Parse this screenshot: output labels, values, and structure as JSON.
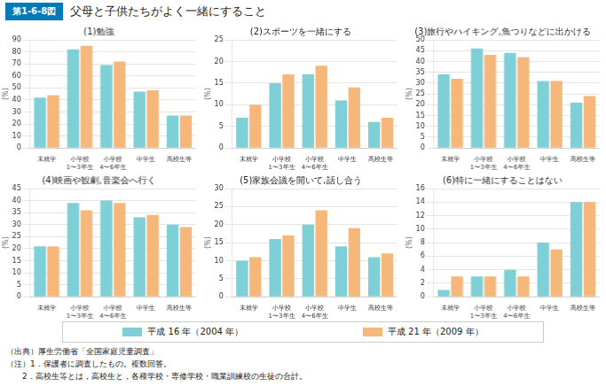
{
  "title": "父母と子供たちがよく一緒にすること",
  "subtitle": "第1-6-8図",
  "annotations": [
    "（出典）厚生労働省「全国家庭児童調査」",
    "（注）1．保護者に調査したもの。複数回答。",
    "　　2．高校生等とは，高校生と，各種学校・専修学校・職業訓練校の生徒の合計。"
  ],
  "chart_data": [
    {
      "type": "bar",
      "title": "(1)勉強",
      "ylabel": "(%)",
      "categories": [
        "未就学",
        "小学校\n1〜3年生",
        "小学校\n4〜6年生",
        "中学生",
        "高校生等"
      ],
      "series": [
        {
          "name": "平成 16 年（2004 年）",
          "color": "#7ECFD6",
          "values": [
            42,
            82,
            69,
            47,
            27
          ]
        },
        {
          "name": "平成 21 年（2009 年）",
          "color": "#F5B87A",
          "values": [
            44,
            85,
            72,
            48,
            27
          ]
        }
      ],
      "ylim": [
        0,
        90
      ],
      "yticks": [
        0,
        10,
        20,
        30,
        40,
        50,
        60,
        70,
        80,
        90
      ],
      "grid": true
    },
    {
      "type": "bar",
      "title": "(2)スポーツを一緒にする",
      "ylabel": "(%)",
      "categories": [
        "未就学",
        "小学校\n1〜3年生",
        "小学校\n4〜6年生",
        "中学生",
        "高校生等"
      ],
      "series": [
        {
          "name": "平成 16 年（2004 年）",
          "color": "#7ECFD6",
          "values": [
            7,
            15,
            17,
            11,
            6
          ]
        },
        {
          "name": "平成 21 年（2009 年）",
          "color": "#F5B87A",
          "values": [
            10,
            17,
            19,
            14,
            7
          ]
        }
      ],
      "ylim": [
        0,
        25
      ],
      "yticks": [
        0,
        5,
        10,
        15,
        20,
        25
      ],
      "grid": true
    },
    {
      "type": "bar",
      "title": "(3)旅行やハイキング,魚つりなどに出かける",
      "ylabel": "(%)",
      "categories": [
        "未就学",
        "小学校\n1〜3年生",
        "小学校\n4〜6年生",
        "中学生",
        "高校生等"
      ],
      "series": [
        {
          "name": "平成 16 年（2004 年）",
          "color": "#7ECFD6",
          "values": [
            34,
            46,
            44,
            31,
            21
          ]
        },
        {
          "name": "平成 21 年（2009 年）",
          "color": "#F5B87A",
          "values": [
            32,
            43,
            42,
            31,
            24
          ]
        }
      ],
      "ylim": [
        0,
        50
      ],
      "yticks": [
        0,
        5,
        10,
        15,
        20,
        25,
        30,
        35,
        40,
        45,
        50
      ],
      "grid": true
    },
    {
      "type": "bar",
      "title": "(4)映画や観劇,音楽会へ行く",
      "ylabel": "(%)",
      "categories": [
        "未就学",
        "小学校\n1〜3年生",
        "小学校\n4〜6年生",
        "中学生",
        "高校生等"
      ],
      "series": [
        {
          "name": "平成 16 年（2004 年）",
          "color": "#7ECFD6",
          "values": [
            21,
            39,
            40,
            33,
            30
          ]
        },
        {
          "name": "平成 21 年（2009 年）",
          "color": "#F5B87A",
          "values": [
            21,
            36,
            39,
            34,
            29
          ]
        }
      ],
      "ylim": [
        0,
        45
      ],
      "yticks": [
        0,
        5,
        10,
        15,
        20,
        25,
        30,
        35,
        40,
        45
      ],
      "grid": true
    },
    {
      "type": "bar",
      "title": "(5)家族会議を開いて,話し合う",
      "ylabel": "(%)",
      "categories": [
        "未就学",
        "小学校\n1〜3年生",
        "小学校\n4〜6年生",
        "中学生",
        "高校生等"
      ],
      "series": [
        {
          "name": "平成 16 年（2004 年）",
          "color": "#7ECFD6",
          "values": [
            10,
            16,
            20,
            14,
            11
          ]
        },
        {
          "name": "平成 21 年（2009 年）",
          "color": "#F5B87A",
          "values": [
            11,
            17,
            24,
            19,
            12
          ]
        }
      ],
      "ylim": [
        0,
        30
      ],
      "yticks": [
        0,
        5,
        10,
        15,
        20,
        25,
        30
      ],
      "grid": true
    },
    {
      "type": "bar",
      "title": "(6)特に一緒にすることはない",
      "ylabel": "(%)",
      "categories": [
        "未就学",
        "小学校\n1〜3年生",
        "小学校\n4〜6年生",
        "中学生",
        "高校生等"
      ],
      "series": [
        {
          "name": "平成 16 年（2004 年）",
          "color": "#7ECFD6",
          "values": [
            1,
            3,
            4,
            8,
            14
          ]
        },
        {
          "name": "平成 21 年（2009 年）",
          "color": "#F5B87A",
          "values": [
            3,
            3,
            3,
            7,
            14
          ]
        }
      ],
      "ylim": [
        0,
        16
      ],
      "yticks": [
        0,
        2,
        4,
        6,
        8,
        10,
        12,
        14,
        16
      ],
      "grid": true
    }
  ]
}
